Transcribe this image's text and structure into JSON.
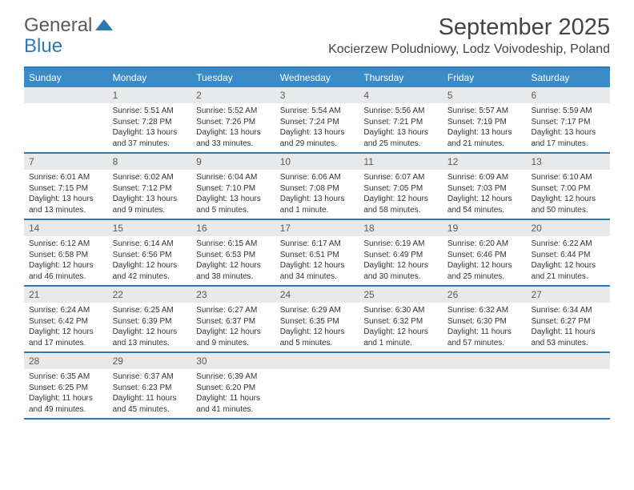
{
  "logo": {
    "text1": "General",
    "text2": "Blue",
    "brand_color": "#2a7ab9"
  },
  "title": "September 2025",
  "location": "Kocierzew Poludniowy, Lodz Voivodeship, Poland",
  "colors": {
    "header_bg": "#3b8bc8",
    "border": "#2a7ab9",
    "daynum_bg": "#e8e9ea",
    "text": "#333333"
  },
  "day_names": [
    "Sunday",
    "Monday",
    "Tuesday",
    "Wednesday",
    "Thursday",
    "Friday",
    "Saturday"
  ],
  "weeks": [
    [
      {
        "n": "",
        "sr": "",
        "ss": "",
        "dl": ""
      },
      {
        "n": "1",
        "sr": "Sunrise: 5:51 AM",
        "ss": "Sunset: 7:28 PM",
        "dl": "Daylight: 13 hours and 37 minutes."
      },
      {
        "n": "2",
        "sr": "Sunrise: 5:52 AM",
        "ss": "Sunset: 7:26 PM",
        "dl": "Daylight: 13 hours and 33 minutes."
      },
      {
        "n": "3",
        "sr": "Sunrise: 5:54 AM",
        "ss": "Sunset: 7:24 PM",
        "dl": "Daylight: 13 hours and 29 minutes."
      },
      {
        "n": "4",
        "sr": "Sunrise: 5:56 AM",
        "ss": "Sunset: 7:21 PM",
        "dl": "Daylight: 13 hours and 25 minutes."
      },
      {
        "n": "5",
        "sr": "Sunrise: 5:57 AM",
        "ss": "Sunset: 7:19 PM",
        "dl": "Daylight: 13 hours and 21 minutes."
      },
      {
        "n": "6",
        "sr": "Sunrise: 5:59 AM",
        "ss": "Sunset: 7:17 PM",
        "dl": "Daylight: 13 hours and 17 minutes."
      }
    ],
    [
      {
        "n": "7",
        "sr": "Sunrise: 6:01 AM",
        "ss": "Sunset: 7:15 PM",
        "dl": "Daylight: 13 hours and 13 minutes."
      },
      {
        "n": "8",
        "sr": "Sunrise: 6:02 AM",
        "ss": "Sunset: 7:12 PM",
        "dl": "Daylight: 13 hours and 9 minutes."
      },
      {
        "n": "9",
        "sr": "Sunrise: 6:04 AM",
        "ss": "Sunset: 7:10 PM",
        "dl": "Daylight: 13 hours and 5 minutes."
      },
      {
        "n": "10",
        "sr": "Sunrise: 6:06 AM",
        "ss": "Sunset: 7:08 PM",
        "dl": "Daylight: 13 hours and 1 minute."
      },
      {
        "n": "11",
        "sr": "Sunrise: 6:07 AM",
        "ss": "Sunset: 7:05 PM",
        "dl": "Daylight: 12 hours and 58 minutes."
      },
      {
        "n": "12",
        "sr": "Sunrise: 6:09 AM",
        "ss": "Sunset: 7:03 PM",
        "dl": "Daylight: 12 hours and 54 minutes."
      },
      {
        "n": "13",
        "sr": "Sunrise: 6:10 AM",
        "ss": "Sunset: 7:00 PM",
        "dl": "Daylight: 12 hours and 50 minutes."
      }
    ],
    [
      {
        "n": "14",
        "sr": "Sunrise: 6:12 AM",
        "ss": "Sunset: 6:58 PM",
        "dl": "Daylight: 12 hours and 46 minutes."
      },
      {
        "n": "15",
        "sr": "Sunrise: 6:14 AM",
        "ss": "Sunset: 6:56 PM",
        "dl": "Daylight: 12 hours and 42 minutes."
      },
      {
        "n": "16",
        "sr": "Sunrise: 6:15 AM",
        "ss": "Sunset: 6:53 PM",
        "dl": "Daylight: 12 hours and 38 minutes."
      },
      {
        "n": "17",
        "sr": "Sunrise: 6:17 AM",
        "ss": "Sunset: 6:51 PM",
        "dl": "Daylight: 12 hours and 34 minutes."
      },
      {
        "n": "18",
        "sr": "Sunrise: 6:19 AM",
        "ss": "Sunset: 6:49 PM",
        "dl": "Daylight: 12 hours and 30 minutes."
      },
      {
        "n": "19",
        "sr": "Sunrise: 6:20 AM",
        "ss": "Sunset: 6:46 PM",
        "dl": "Daylight: 12 hours and 25 minutes."
      },
      {
        "n": "20",
        "sr": "Sunrise: 6:22 AM",
        "ss": "Sunset: 6:44 PM",
        "dl": "Daylight: 12 hours and 21 minutes."
      }
    ],
    [
      {
        "n": "21",
        "sr": "Sunrise: 6:24 AM",
        "ss": "Sunset: 6:42 PM",
        "dl": "Daylight: 12 hours and 17 minutes."
      },
      {
        "n": "22",
        "sr": "Sunrise: 6:25 AM",
        "ss": "Sunset: 6:39 PM",
        "dl": "Daylight: 12 hours and 13 minutes."
      },
      {
        "n": "23",
        "sr": "Sunrise: 6:27 AM",
        "ss": "Sunset: 6:37 PM",
        "dl": "Daylight: 12 hours and 9 minutes."
      },
      {
        "n": "24",
        "sr": "Sunrise: 6:29 AM",
        "ss": "Sunset: 6:35 PM",
        "dl": "Daylight: 12 hours and 5 minutes."
      },
      {
        "n": "25",
        "sr": "Sunrise: 6:30 AM",
        "ss": "Sunset: 6:32 PM",
        "dl": "Daylight: 12 hours and 1 minute."
      },
      {
        "n": "26",
        "sr": "Sunrise: 6:32 AM",
        "ss": "Sunset: 6:30 PM",
        "dl": "Daylight: 11 hours and 57 minutes."
      },
      {
        "n": "27",
        "sr": "Sunrise: 6:34 AM",
        "ss": "Sunset: 6:27 PM",
        "dl": "Daylight: 11 hours and 53 minutes."
      }
    ],
    [
      {
        "n": "28",
        "sr": "Sunrise: 6:35 AM",
        "ss": "Sunset: 6:25 PM",
        "dl": "Daylight: 11 hours and 49 minutes."
      },
      {
        "n": "29",
        "sr": "Sunrise: 6:37 AM",
        "ss": "Sunset: 6:23 PM",
        "dl": "Daylight: 11 hours and 45 minutes."
      },
      {
        "n": "30",
        "sr": "Sunrise: 6:39 AM",
        "ss": "Sunset: 6:20 PM",
        "dl": "Daylight: 11 hours and 41 minutes."
      },
      {
        "n": "",
        "sr": "",
        "ss": "",
        "dl": ""
      },
      {
        "n": "",
        "sr": "",
        "ss": "",
        "dl": ""
      },
      {
        "n": "",
        "sr": "",
        "ss": "",
        "dl": ""
      },
      {
        "n": "",
        "sr": "",
        "ss": "",
        "dl": ""
      }
    ]
  ]
}
